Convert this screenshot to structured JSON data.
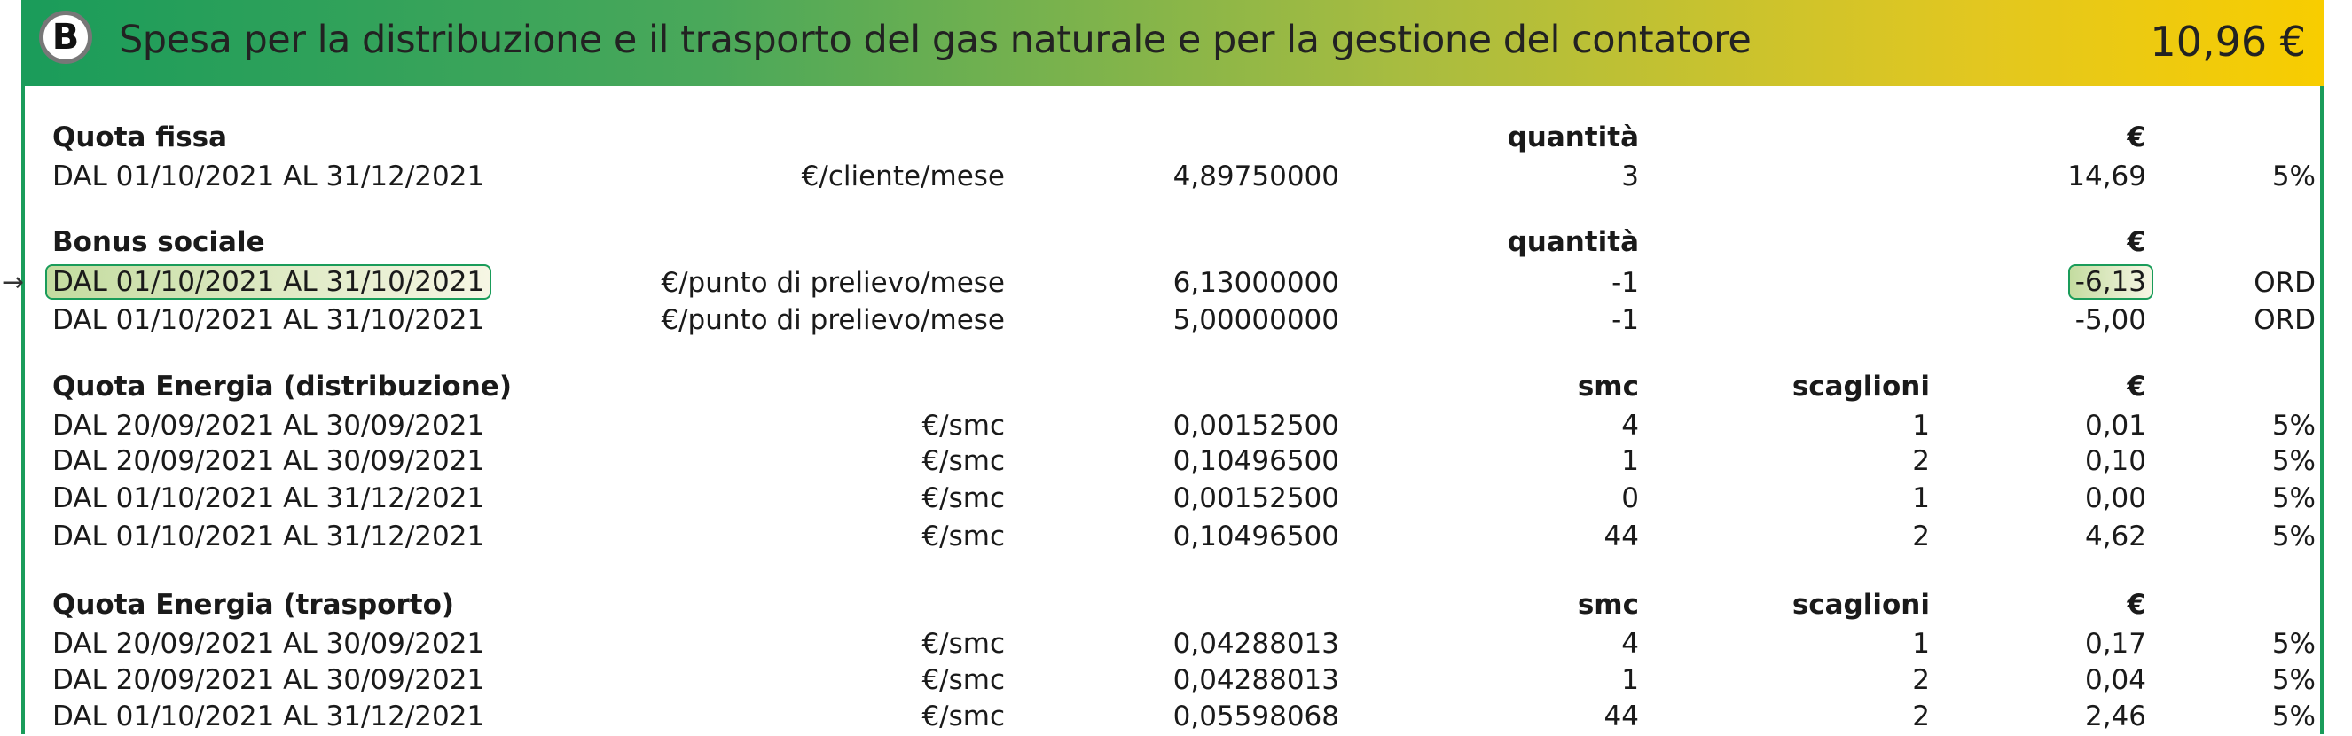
{
  "header": {
    "badge": "B",
    "title": "Spesa per la distribuzione e il trasporto del gas naturale e per la gestione del contatore",
    "total": "10,96 €",
    "colors": {
      "start": "#1a9c5a",
      "end": "#f8cd00"
    }
  },
  "sections": [
    {
      "title": "Quota fissa",
      "headers": {
        "qty": "quantità",
        "eur": "€"
      },
      "rows": [
        {
          "period": "DAL 01/10/2021 AL 31/12/2021",
          "unit": "€/cliente/mese",
          "price": "4,89750000",
          "qty": "3",
          "eur": "14,69",
          "vat": "5%"
        }
      ]
    },
    {
      "title": "Bonus sociale",
      "headers": {
        "qty": "quantità",
        "eur": "€"
      },
      "rows": [
        {
          "period": "DAL 01/10/2021 AL 31/10/2021",
          "unit": "€/punto di prelievo/mese",
          "price": "6,13000000",
          "qty": "-1",
          "eur": "-6,13",
          "vat": "ORD",
          "highlighted": true
        },
        {
          "period": "DAL 01/10/2021 AL 31/10/2021",
          "unit": "€/punto di prelievo/mese",
          "price": "5,00000000",
          "qty": "-1",
          "eur": "-5,00",
          "vat": "ORD"
        }
      ]
    },
    {
      "title": "Quota Energia (distribuzione)",
      "headers": {
        "qty": "smc",
        "sc": "scaglioni",
        "eur": "€"
      },
      "rows": [
        {
          "period": "DAL 20/09/2021 AL 30/09/2021",
          "unit": "€/smc",
          "price": "0,00152500",
          "qty": "4",
          "sc": "1",
          "eur": "0,01",
          "vat": "5%"
        },
        {
          "period": "DAL 20/09/2021 AL 30/09/2021",
          "unit": "€/smc",
          "price": "0,10496500",
          "qty": "1",
          "sc": "2",
          "eur": "0,10",
          "vat": "5%"
        },
        {
          "period": "DAL 01/10/2021 AL 31/12/2021",
          "unit": "€/smc",
          "price": "0,00152500",
          "qty": "0",
          "sc": "1",
          "eur": "0,00",
          "vat": "5%"
        },
        {
          "period": "DAL 01/10/2021 AL 31/12/2021",
          "unit": "€/smc",
          "price": "0,10496500",
          "qty": "44",
          "sc": "2",
          "eur": "4,62",
          "vat": "5%"
        }
      ]
    },
    {
      "title": "Quota Energia (trasporto)",
      "headers": {
        "qty": "smc",
        "sc": "scaglioni",
        "eur": "€"
      },
      "rows": [
        {
          "period": "DAL 20/09/2021 AL 30/09/2021",
          "unit": "€/smc",
          "price": "0,04288013",
          "qty": "4",
          "sc": "1",
          "eur": "0,17",
          "vat": "5%"
        },
        {
          "period": "DAL 20/09/2021 AL 30/09/2021",
          "unit": "€/smc",
          "price": "0,04288013",
          "qty": "1",
          "sc": "2",
          "eur": "0,04",
          "vat": "5%"
        },
        {
          "period": "DAL 01/10/2021 AL 31/12/2021",
          "unit": "€/smc",
          "price": "0,05598068",
          "qty": "44",
          "sc": "2",
          "eur": "2,46",
          "vat": "5%"
        }
      ]
    }
  ]
}
